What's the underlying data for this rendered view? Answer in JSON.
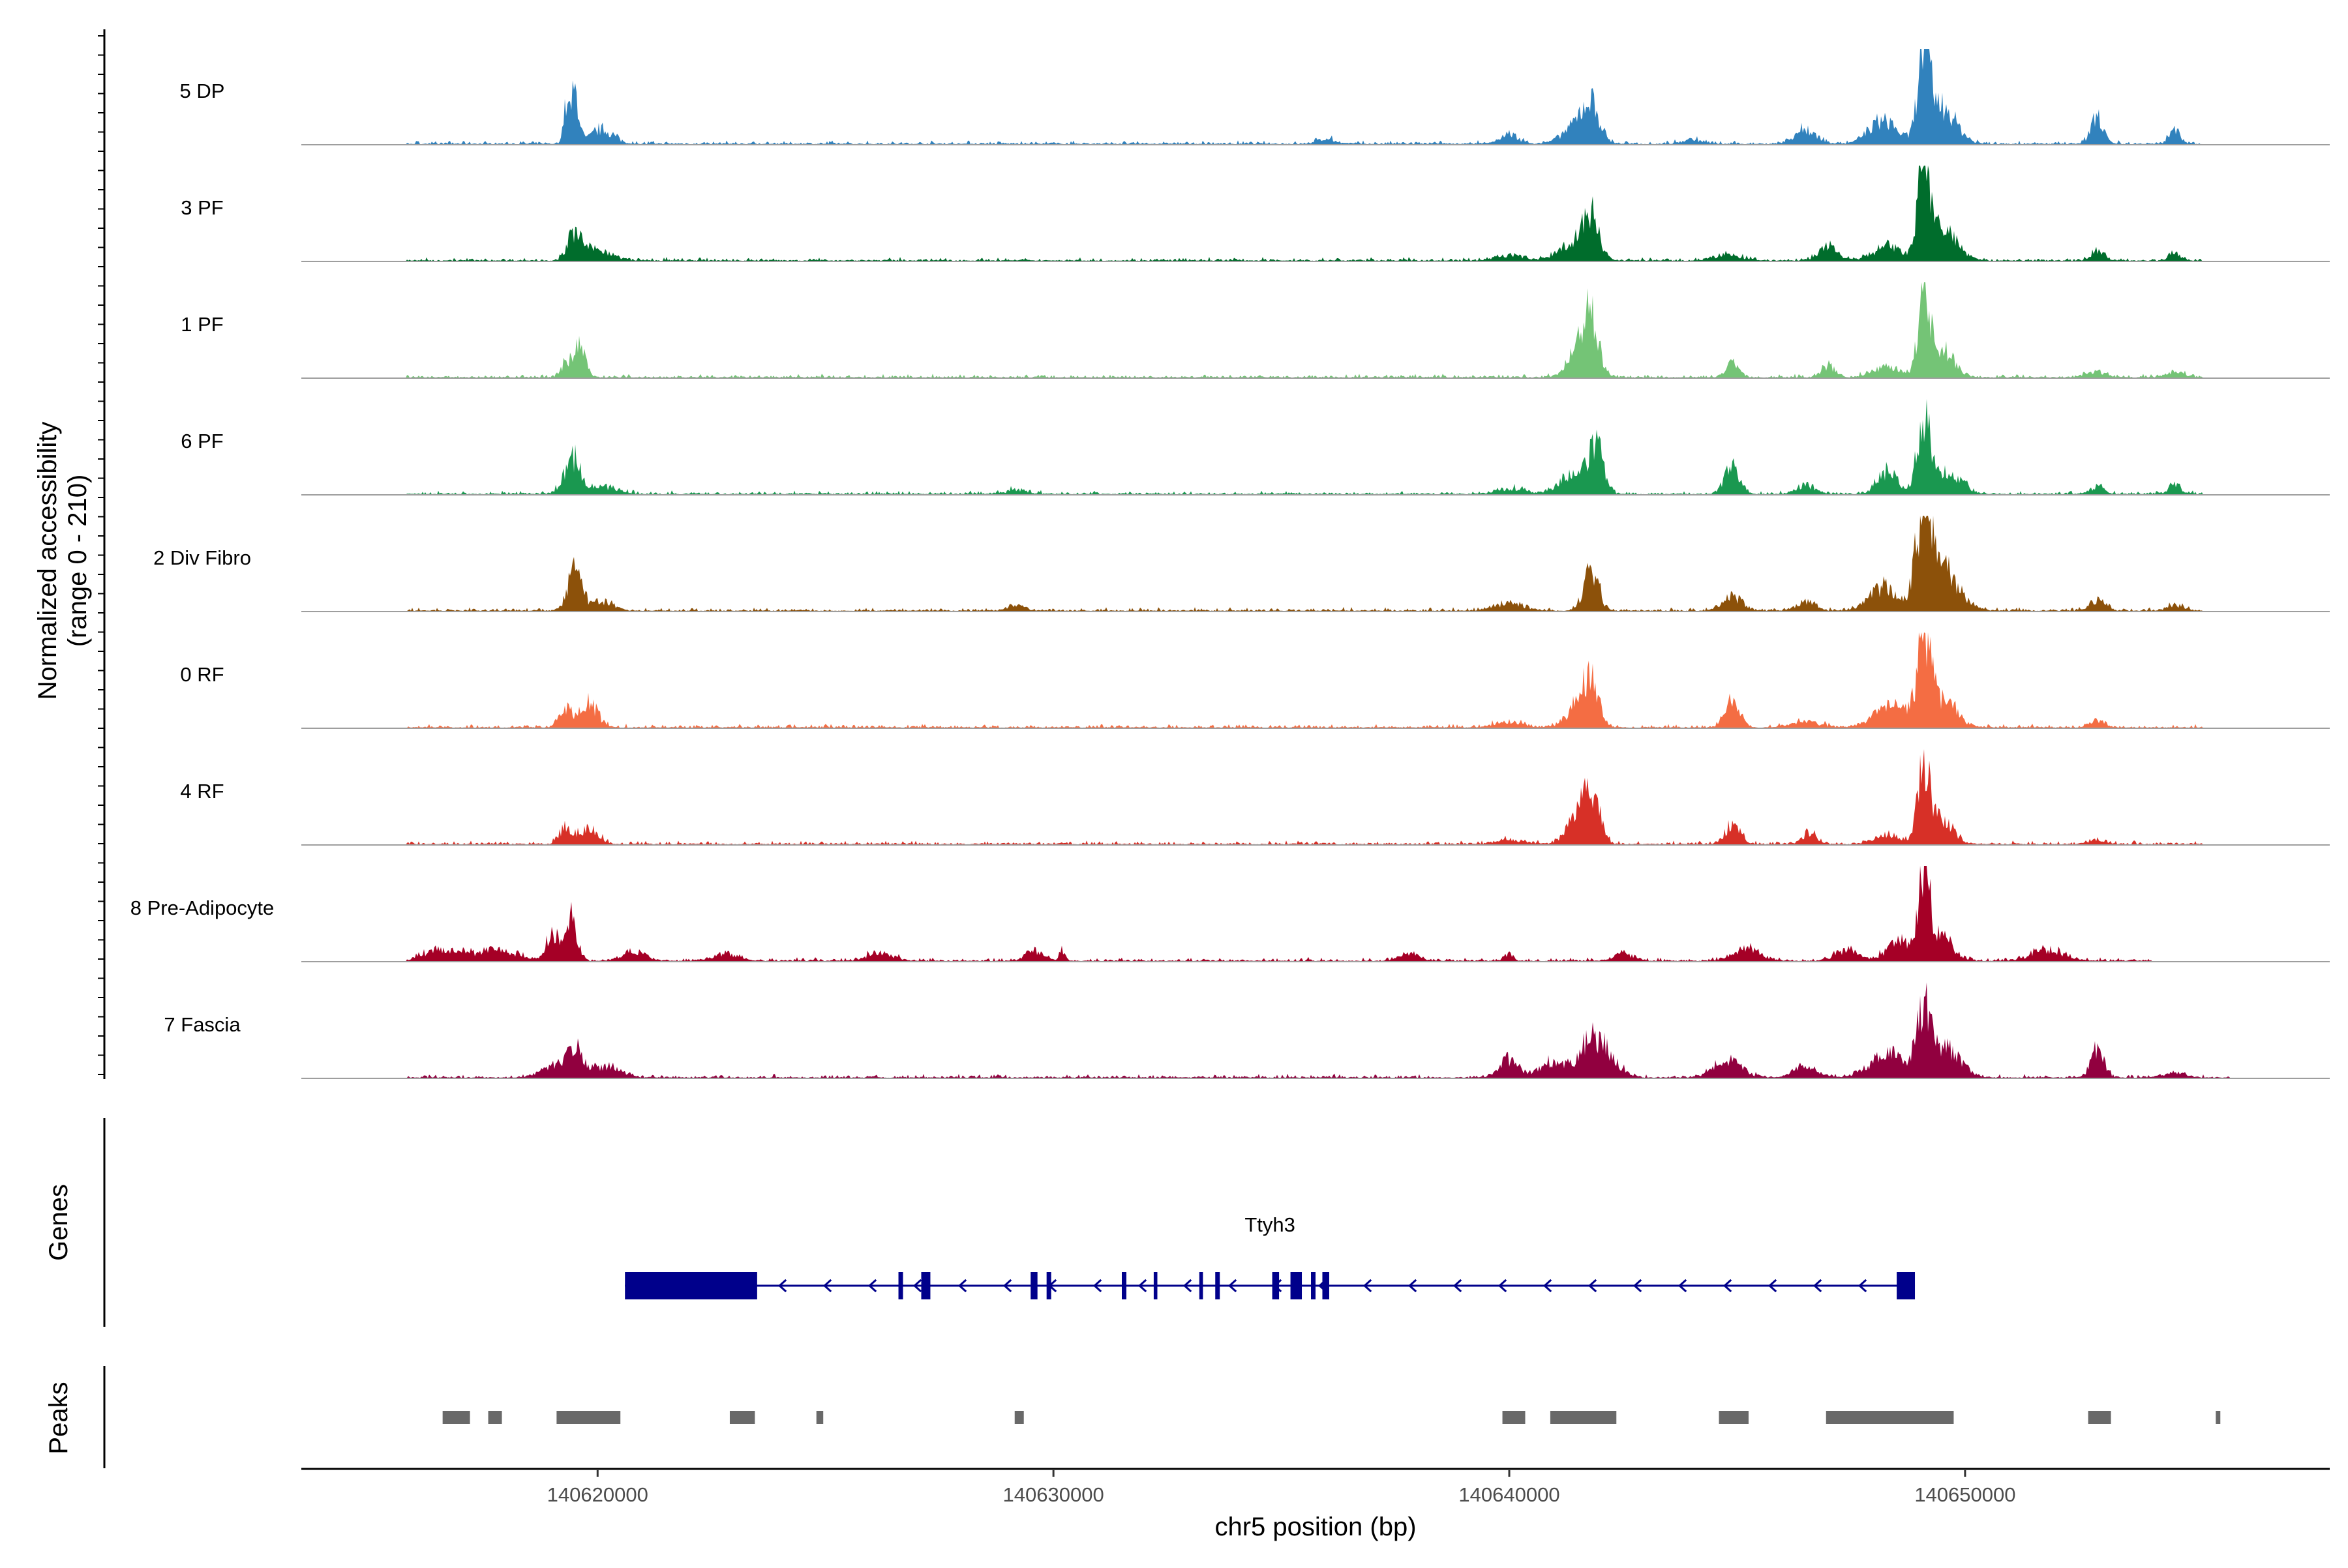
{
  "chart_data": {
    "type": "genome-browser-coverage",
    "ylabel_line1": "Normalized accessibility",
    "ylabel_line2": "(range 0 - 210)",
    "xlabel": "chr5 position (bp)",
    "xlim": [
      140613500,
      140658000
    ],
    "x_ticks": [
      140620000,
      140630000,
      140640000,
      140650000
    ],
    "x_tick_labels": [
      "140620000",
      "140630000",
      "140640000",
      "140650000"
    ],
    "tracks": [
      {
        "name": "5 DP",
        "color": "#3182bd",
        "peaks": [
          [
            140619500,
            0.55,
            90
          ],
          [
            140619300,
            0.35,
            60
          ],
          [
            140620100,
            0.15,
            250
          ],
          [
            140640000,
            0.1,
            200
          ],
          [
            140641800,
            0.35,
            180
          ],
          [
            140641500,
            0.2,
            300
          ],
          [
            140646500,
            0.15,
            250
          ],
          [
            140648200,
            0.25,
            300
          ],
          [
            140649100,
            1.0,
            130
          ],
          [
            140649500,
            0.4,
            300
          ],
          [
            140652900,
            0.3,
            130
          ],
          [
            140654600,
            0.15,
            120
          ],
          [
            140636000,
            0.05,
            200
          ],
          [
            140644000,
            0.05,
            200
          ]
        ],
        "noise_from": 140615800,
        "noise_to": 140655200
      },
      {
        "name": "3 PF",
        "color": "#006d2c",
        "peaks": [
          [
            140619500,
            0.28,
            150
          ],
          [
            140620000,
            0.12,
            300
          ],
          [
            140640000,
            0.06,
            300
          ],
          [
            140641800,
            0.42,
            180
          ],
          [
            140641400,
            0.2,
            300
          ],
          [
            140644800,
            0.06,
            300
          ],
          [
            140647000,
            0.15,
            200
          ],
          [
            140648300,
            0.15,
            300
          ],
          [
            140649100,
            1.0,
            130
          ],
          [
            140649500,
            0.35,
            300
          ],
          [
            140652900,
            0.12,
            130
          ],
          [
            140654600,
            0.08,
            120
          ]
        ],
        "noise_from": 140615800,
        "noise_to": 140655200
      },
      {
        "name": "1 PF",
        "color": "#74c476",
        "peaks": [
          [
            140619600,
            0.35,
            130
          ],
          [
            140619300,
            0.15,
            100
          ],
          [
            140641800,
            0.62,
            160
          ],
          [
            140641500,
            0.3,
            220
          ],
          [
            140644900,
            0.15,
            150
          ],
          [
            140647000,
            0.12,
            150
          ],
          [
            140648300,
            0.12,
            300
          ],
          [
            140649100,
            1.0,
            120
          ],
          [
            140649500,
            0.3,
            250
          ],
          [
            140652900,
            0.06,
            200
          ],
          [
            140654600,
            0.05,
            200
          ]
        ],
        "noise_from": 140615800,
        "noise_to": 140655200
      },
      {
        "name": "6 PF",
        "color": "#1a9850",
        "peaks": [
          [
            140619500,
            0.3,
            140
          ],
          [
            140619300,
            0.15,
            150
          ],
          [
            140620100,
            0.08,
            300
          ],
          [
            140641900,
            0.5,
            160
          ],
          [
            140641400,
            0.2,
            300
          ],
          [
            140640000,
            0.06,
            300
          ],
          [
            140644900,
            0.3,
            170
          ],
          [
            140646500,
            0.1,
            200
          ],
          [
            140648300,
            0.25,
            220
          ],
          [
            140649100,
            0.85,
            140
          ],
          [
            140649600,
            0.25,
            300
          ],
          [
            140652900,
            0.08,
            150
          ],
          [
            140654600,
            0.1,
            120
          ],
          [
            140629200,
            0.05,
            200
          ]
        ],
        "noise_from": 140615800,
        "noise_to": 140655200
      },
      {
        "name": "2 Div Fibro",
        "color": "#8c510a",
        "peaks": [
          [
            140619500,
            0.45,
            150
          ],
          [
            140620100,
            0.1,
            250
          ],
          [
            140641800,
            0.5,
            150
          ],
          [
            140640000,
            0.08,
            300
          ],
          [
            140644900,
            0.15,
            220
          ],
          [
            140646500,
            0.1,
            200
          ],
          [
            140648200,
            0.25,
            300
          ],
          [
            140649100,
            1.0,
            170
          ],
          [
            140649500,
            0.45,
            350
          ],
          [
            140652900,
            0.12,
            170
          ],
          [
            140654600,
            0.05,
            200
          ],
          [
            140629200,
            0.05,
            200
          ]
        ],
        "noise_from": 140615800,
        "noise_to": 140655200
      },
      {
        "name": "0 RF",
        "color": "#f46d43",
        "peaks": [
          [
            140619300,
            0.2,
            130
          ],
          [
            140619800,
            0.25,
            200
          ],
          [
            140640000,
            0.06,
            300
          ],
          [
            140641800,
            0.48,
            170
          ],
          [
            140641500,
            0.22,
            250
          ],
          [
            140644900,
            0.3,
            160
          ],
          [
            140646500,
            0.06,
            300
          ],
          [
            140648400,
            0.25,
            350
          ],
          [
            140649100,
            0.95,
            140
          ],
          [
            140649500,
            0.3,
            300
          ],
          [
            140652900,
            0.08,
            150
          ]
        ],
        "noise_from": 140615800,
        "noise_to": 140655200
      },
      {
        "name": "4 RF",
        "color": "#d73027",
        "peaks": [
          [
            140619300,
            0.18,
            130
          ],
          [
            140619800,
            0.18,
            200
          ],
          [
            140641800,
            0.55,
            170
          ],
          [
            140641500,
            0.25,
            250
          ],
          [
            140640000,
            0.05,
            300
          ],
          [
            140644900,
            0.2,
            170
          ],
          [
            140646600,
            0.12,
            150
          ],
          [
            140648300,
            0.1,
            300
          ],
          [
            140649100,
            0.9,
            130
          ],
          [
            140649500,
            0.25,
            250
          ],
          [
            140652900,
            0.05,
            200
          ]
        ],
        "noise_from": 140615800,
        "noise_to": 140655200
      },
      {
        "name": "8 Pre-Adipocyte",
        "color": "#a50026",
        "peaks": [
          [
            140619400,
            0.45,
            140
          ],
          [
            140619000,
            0.3,
            130
          ],
          [
            140616600,
            0.12,
            400
          ],
          [
            140617800,
            0.12,
            400
          ],
          [
            140620800,
            0.1,
            250
          ],
          [
            140622800,
            0.08,
            250
          ],
          [
            140626200,
            0.1,
            250
          ],
          [
            140629600,
            0.1,
            200
          ],
          [
            140630200,
            0.12,
            60
          ],
          [
            140637800,
            0.08,
            200
          ],
          [
            140640000,
            0.1,
            80
          ],
          [
            140642500,
            0.08,
            200
          ],
          [
            140645200,
            0.12,
            300
          ],
          [
            140647400,
            0.12,
            250
          ],
          [
            140648600,
            0.2,
            300
          ],
          [
            140649100,
            0.95,
            120
          ],
          [
            140649500,
            0.25,
            250
          ],
          [
            140651800,
            0.12,
            350
          ]
        ],
        "noise_from": 140615800,
        "noise_to": 140654100
      },
      {
        "name": "7 Fascia",
        "color": "#91003f",
        "peaks": [
          [
            140619500,
            0.3,
            200
          ],
          [
            140619000,
            0.12,
            250
          ],
          [
            140620200,
            0.12,
            300
          ],
          [
            140640000,
            0.2,
            200
          ],
          [
            140641800,
            0.4,
            220
          ],
          [
            140641000,
            0.18,
            300
          ],
          [
            140642200,
            0.2,
            250
          ],
          [
            140644800,
            0.18,
            300
          ],
          [
            140646500,
            0.12,
            250
          ],
          [
            140648300,
            0.25,
            400
          ],
          [
            140649100,
            0.72,
            160
          ],
          [
            140649600,
            0.3,
            300
          ],
          [
            140652900,
            0.32,
            140
          ],
          [
            140654600,
            0.05,
            250
          ]
        ],
        "noise_from": 140615800,
        "noise_to": 140655800
      }
    ],
    "genes": {
      "title": "Genes",
      "name": "Ttyh3",
      "color": "#00008b",
      "strand": "-",
      "start": 140620600,
      "end": 140648900,
      "exons": [
        [
          140620600,
          140623500
        ],
        [
          140626600,
          140626700
        ],
        [
          140627100,
          140627300
        ],
        [
          140629500,
          140629650
        ],
        [
          140629850,
          140629950
        ],
        [
          140631500,
          140631600
        ],
        [
          140632200,
          140632280
        ],
        [
          140633200,
          140633280
        ],
        [
          140633550,
          140633650
        ],
        [
          140634800,
          140634950
        ],
        [
          140635200,
          140635450
        ],
        [
          140635650,
          140635750
        ],
        [
          140635900,
          140636050
        ],
        [
          140648500,
          140648900
        ]
      ]
    },
    "peaks_track": {
      "title": "Peaks",
      "color": "#696969",
      "regions": [
        [
          140616600,
          140617200
        ],
        [
          140617600,
          140617900
        ],
        [
          140619100,
          140620500
        ],
        [
          140622900,
          140623450
        ],
        [
          140624800,
          140624950
        ],
        [
          140629150,
          140629350
        ],
        [
          140639850,
          140640350
        ],
        [
          140640900,
          140642350
        ],
        [
          140644600,
          140645250
        ],
        [
          140646950,
          140649750
        ],
        [
          140652700,
          140653200
        ],
        [
          140655500,
          140655600
        ]
      ]
    }
  }
}
